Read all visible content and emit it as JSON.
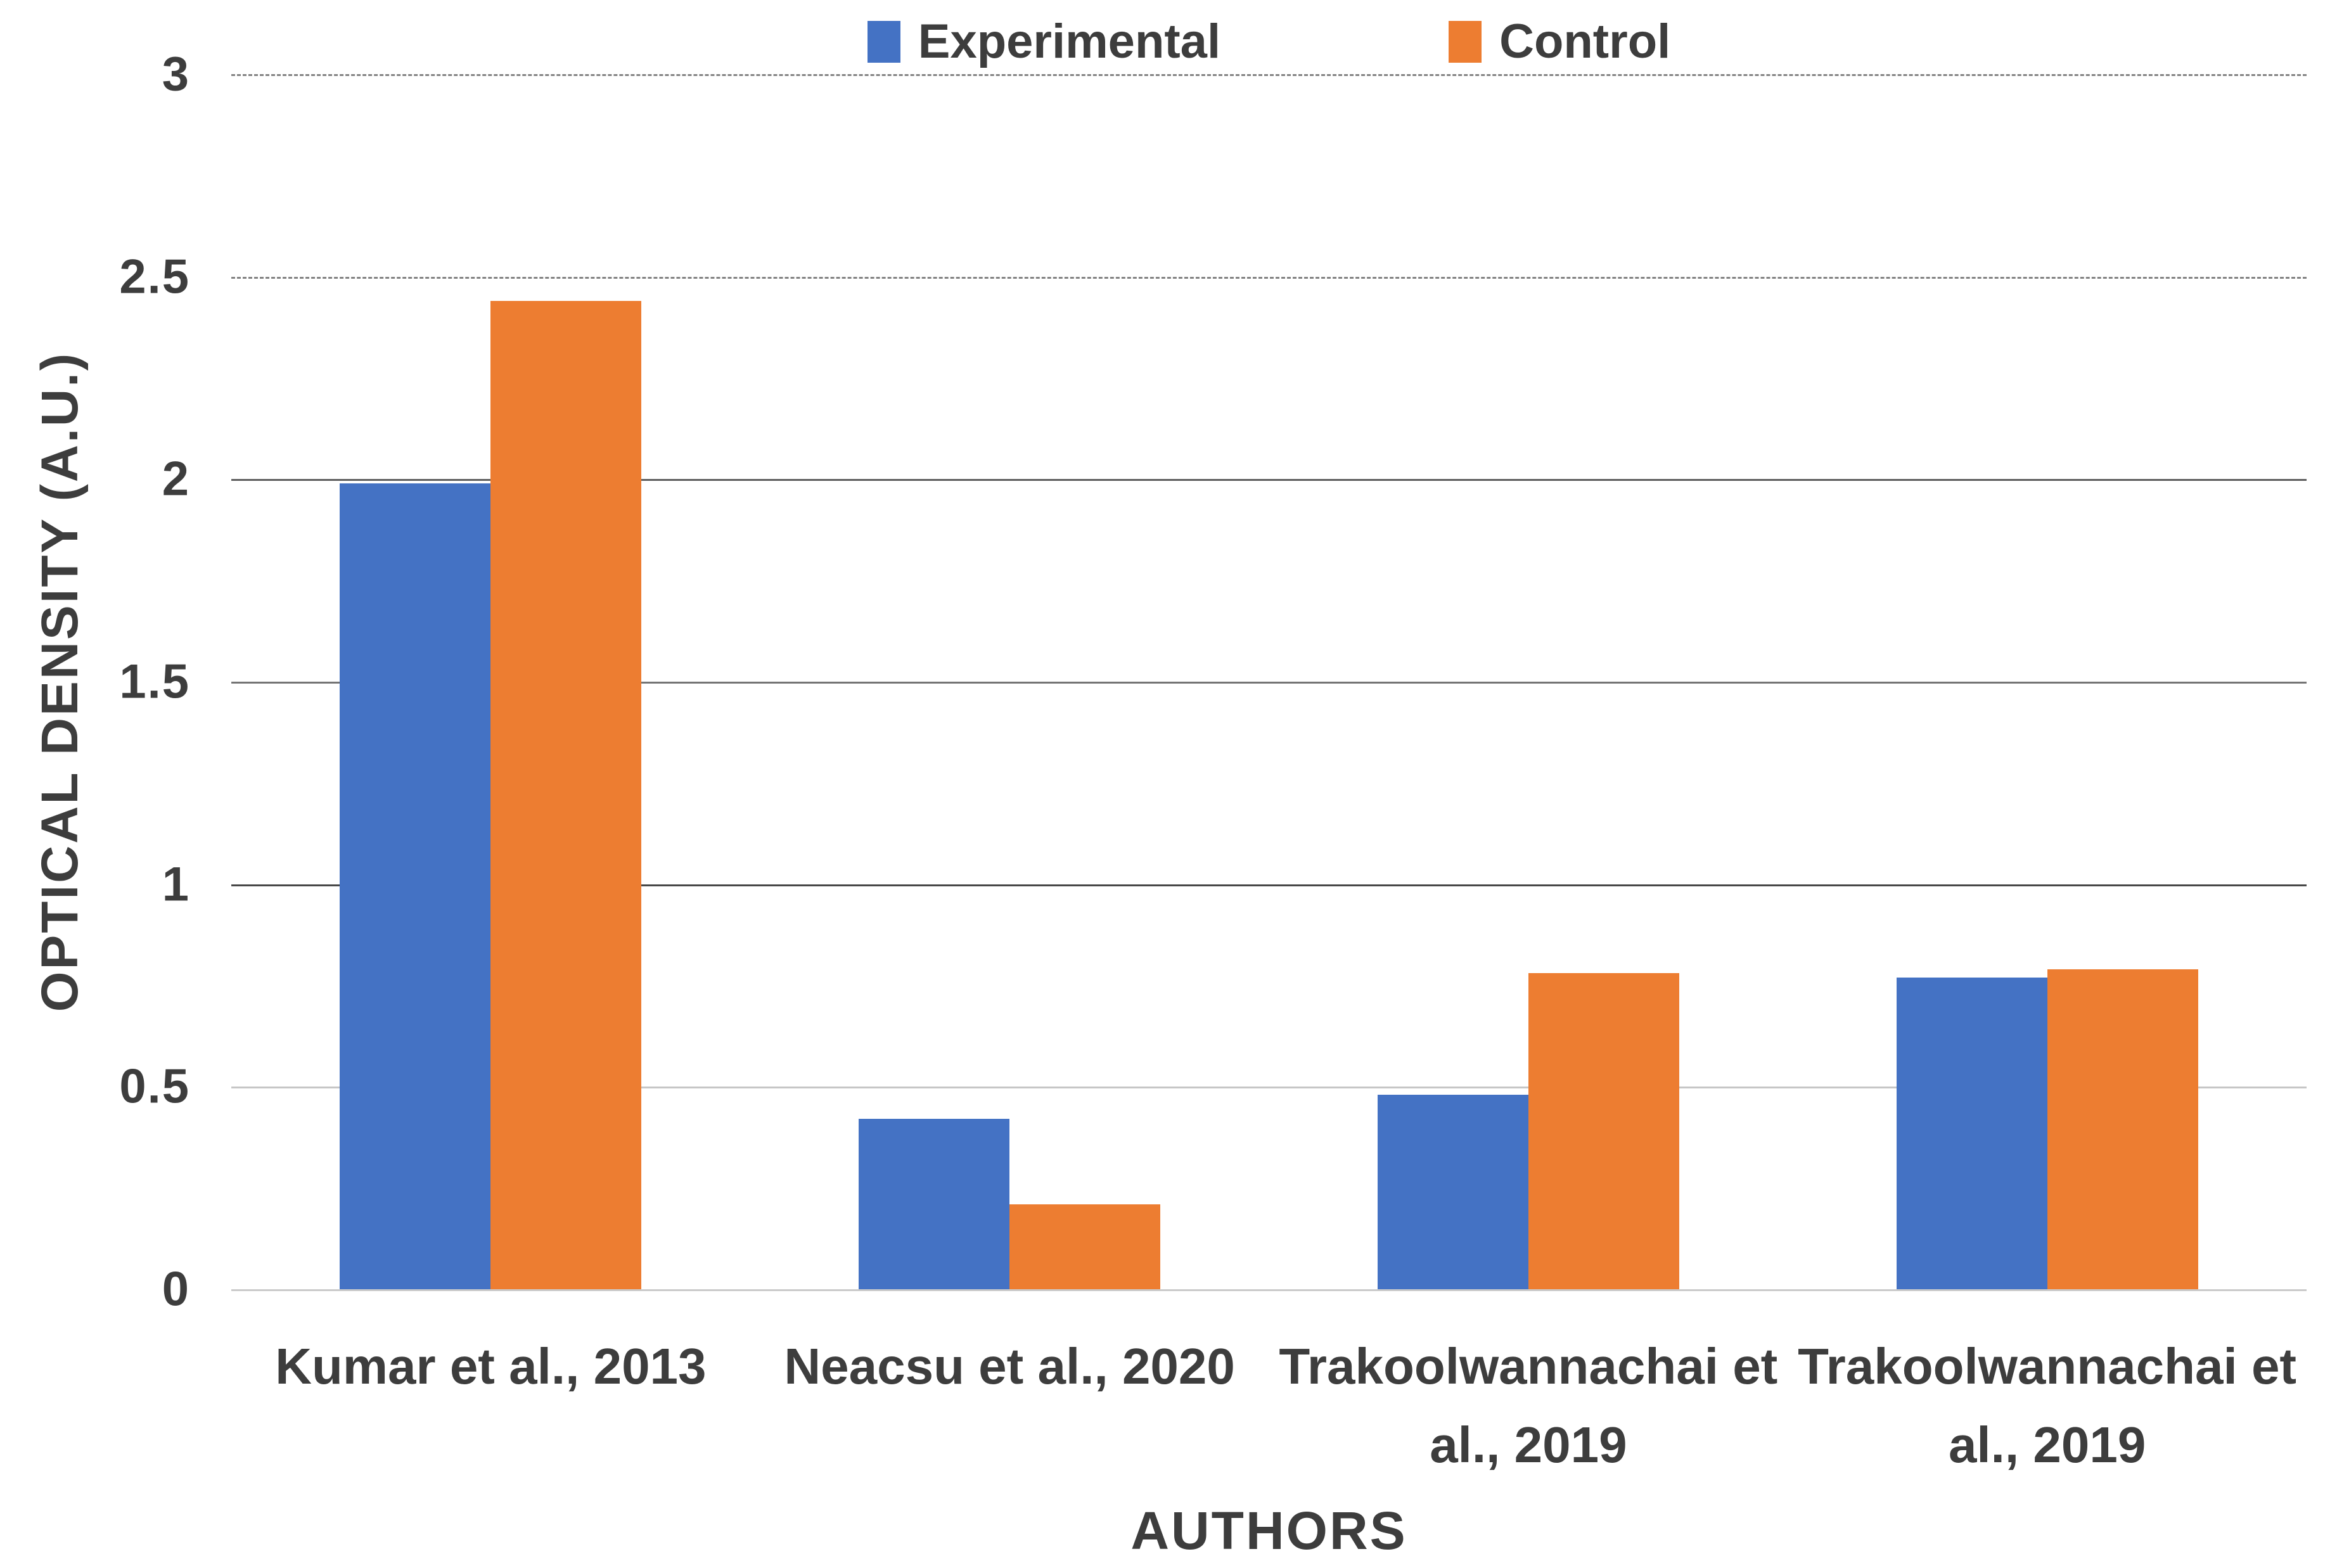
{
  "chart_data": {
    "type": "bar",
    "title": "",
    "categories": [
      "Kumar et al., 2013",
      "Neacsu et al., 2020",
      "Trakoolwannachai et al., 2019",
      "Trakoolwannachai et al., 2019"
    ],
    "series": [
      {
        "name": "Experimental",
        "color": "#4472C4",
        "values": [
          1.99,
          0.42,
          0.48,
          0.77
        ]
      },
      {
        "name": "Control",
        "color": "#ED7D31",
        "values": [
          2.44,
          0.21,
          0.78,
          0.79
        ]
      }
    ],
    "xlabel": "AUTHORS",
    "ylabel": "OPTICAL DENSITY (A.U.)",
    "ylim": [
      0,
      3
    ],
    "yticks": [
      0,
      0.5,
      1,
      1.5,
      2,
      2.5,
      3
    ],
    "grid": true,
    "legend_position": "top-center",
    "background_color": "#ffffff",
    "text_color": "#3d3d3d"
  }
}
